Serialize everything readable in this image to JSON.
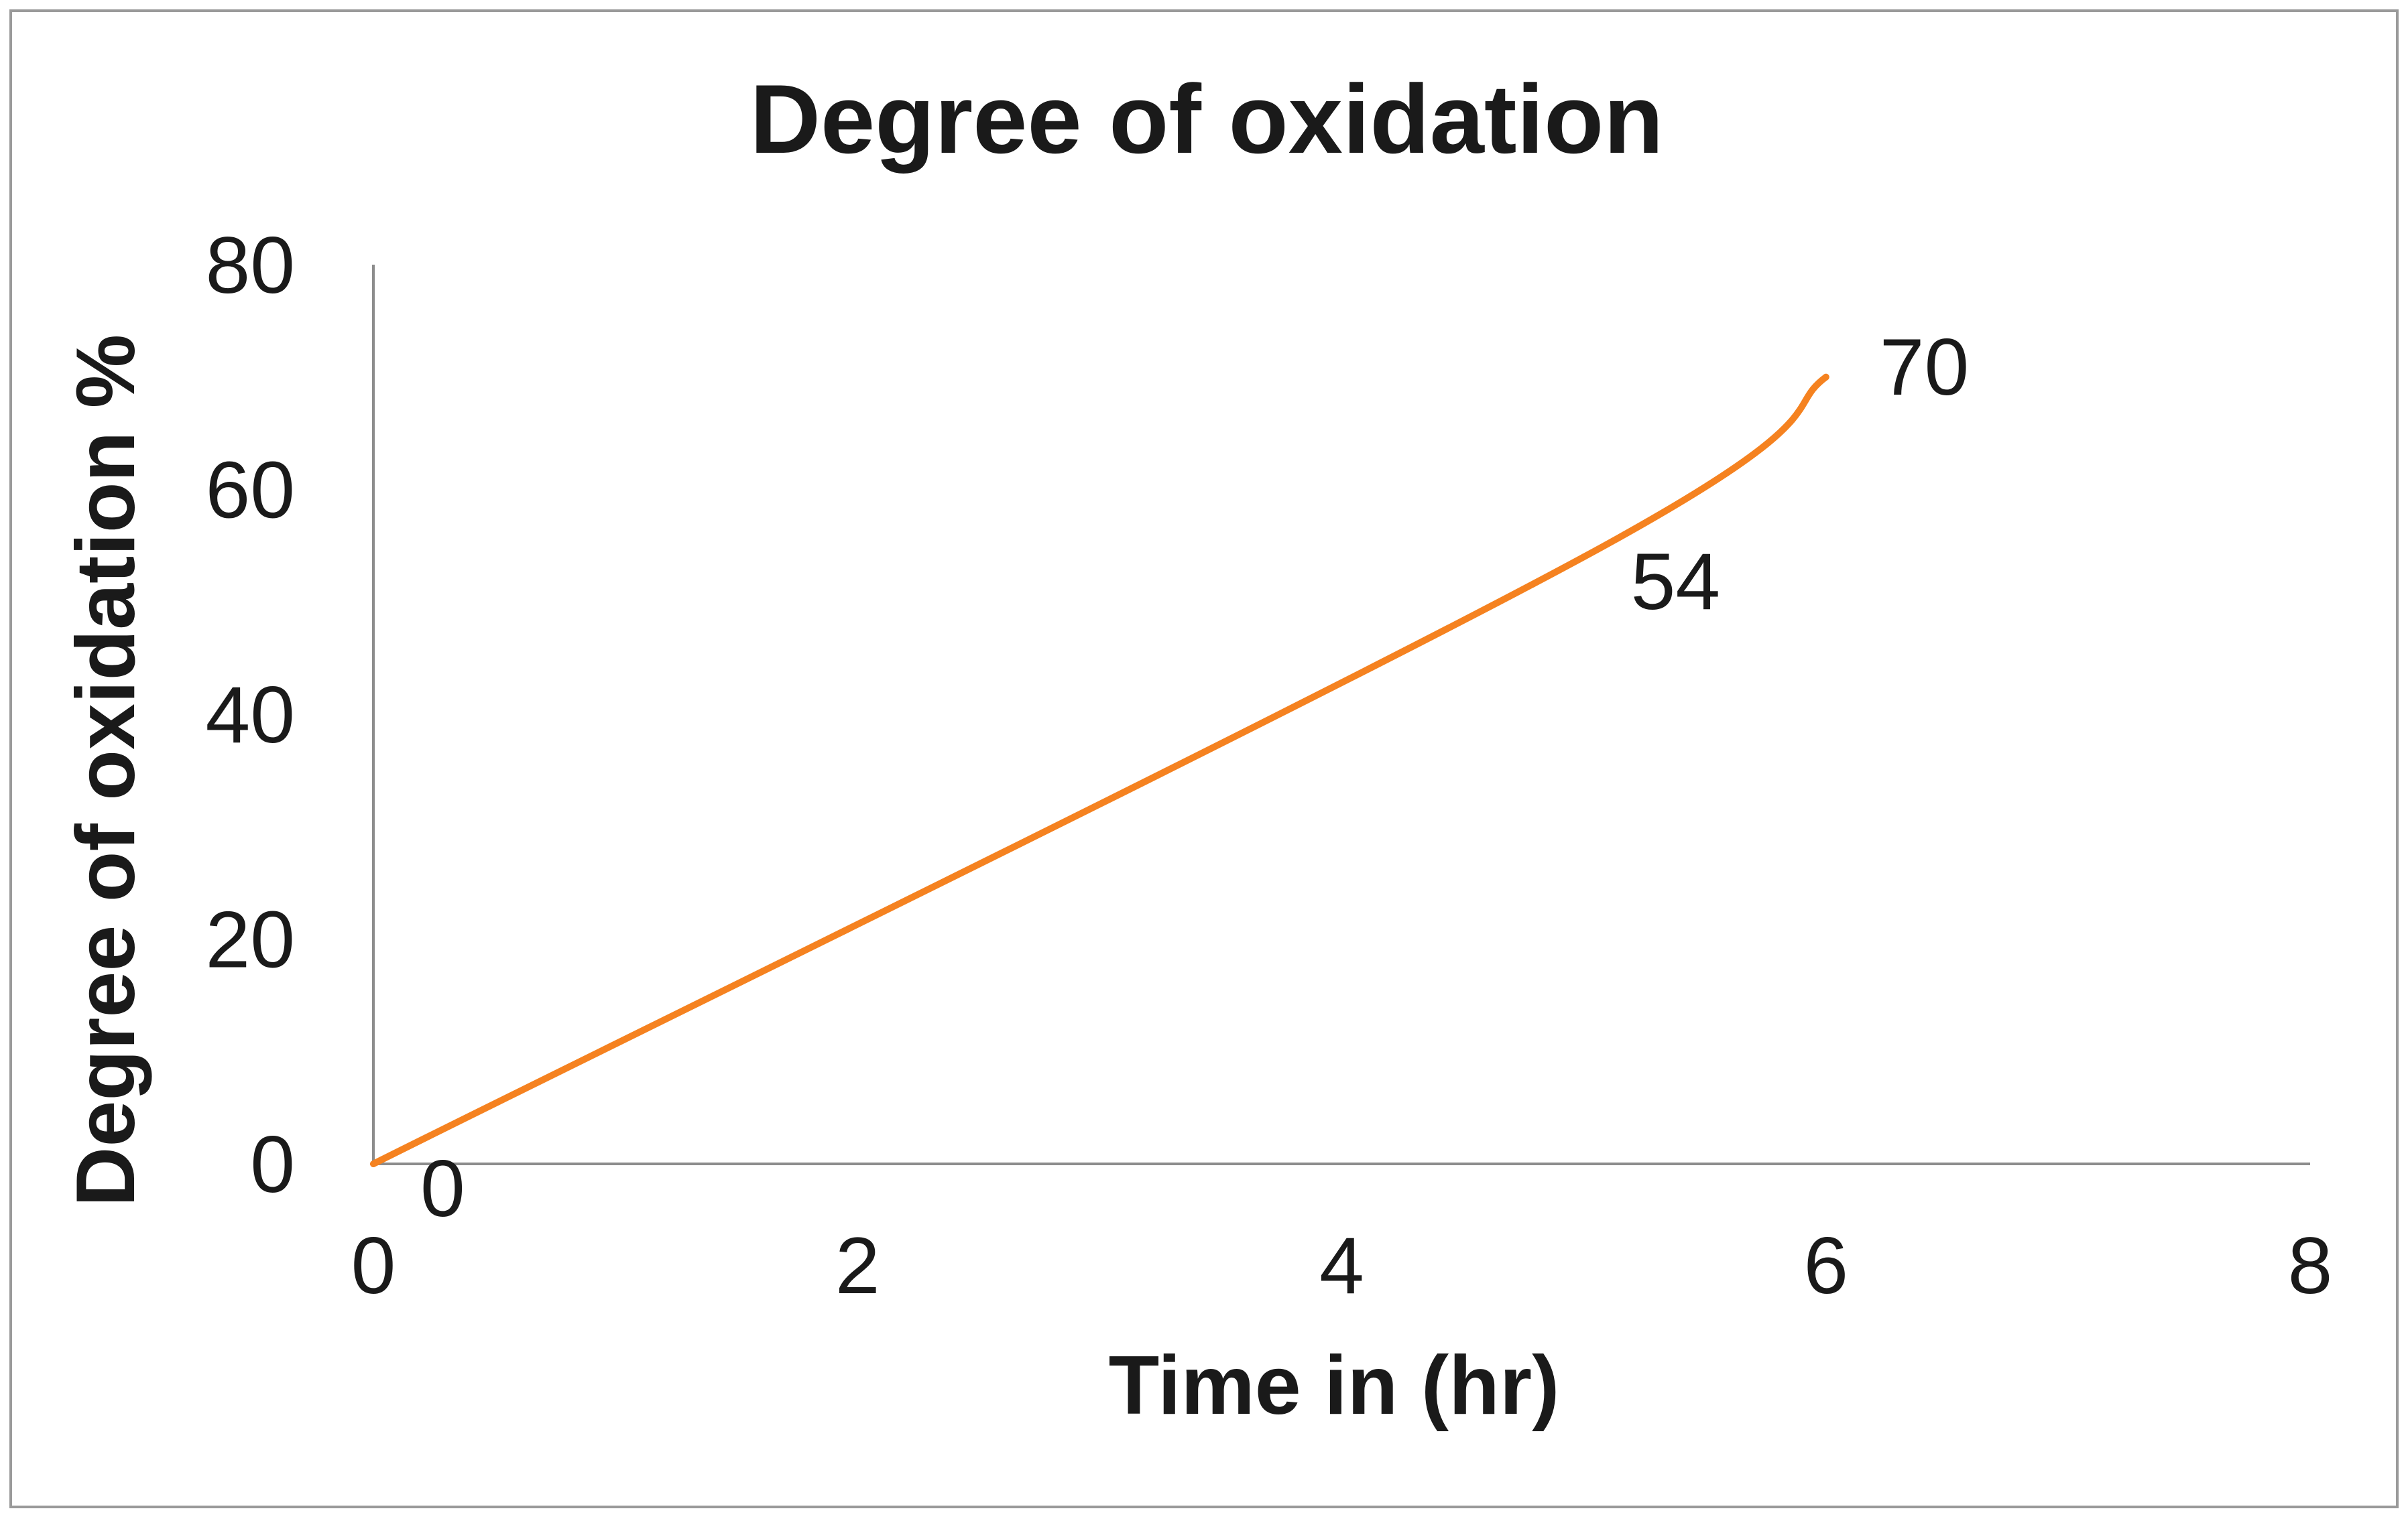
{
  "chart_data": {
    "type": "line",
    "title": "Degree of oxidation",
    "xlabel": "Time in (hr)",
    "ylabel": "Degree of oxidation %",
    "xlim": [
      0,
      8
    ],
    "ylim": [
      0,
      80
    ],
    "xticks": [
      "0",
      "2",
      "4",
      "6",
      "8"
    ],
    "yticks": [
      "0",
      "20",
      "40",
      "60",
      "80"
    ],
    "grid": false,
    "legend": "none",
    "series": [
      {
        "color": "#F58220",
        "x": [
          0,
          5,
          6
        ],
        "y": [
          0,
          54,
          70
        ],
        "data_labels": [
          "0",
          "54",
          "70"
        ]
      }
    ]
  }
}
